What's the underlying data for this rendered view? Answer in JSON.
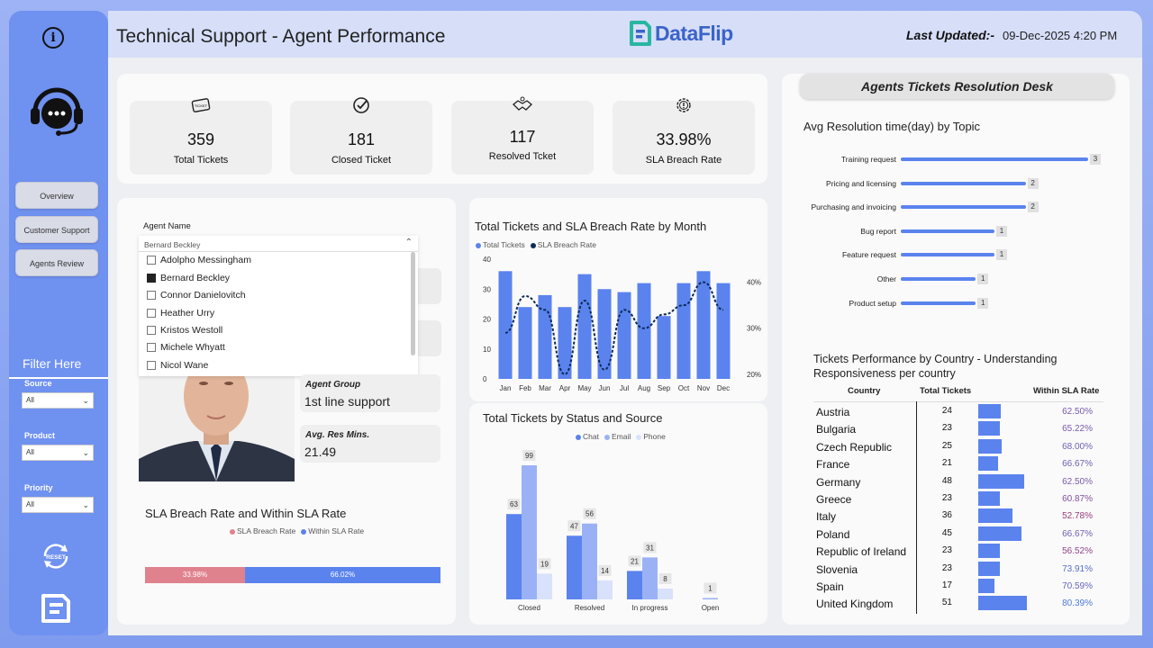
{
  "header": {
    "title": "Technical Support - Agent Performance",
    "brand": "DataFlip",
    "last_updated_label": "Last Updated:-",
    "last_updated_value": "09-Dec-2025 4:20 PM"
  },
  "sidebar": {
    "nav": [
      "Overview",
      "Customer Support",
      "Agents Review"
    ],
    "filter_title": "Filter Here",
    "filters": [
      {
        "label": "Source",
        "value": "All"
      },
      {
        "label": "Product",
        "value": "All"
      },
      {
        "label": "Priority",
        "value": "All"
      }
    ],
    "reset_label": "RESET"
  },
  "kpis": [
    {
      "value": "359",
      "label": "Total Tickets",
      "icon": "ticket-icon"
    },
    {
      "value": "181",
      "label": "Closed Ticket",
      "icon": "check-circle-icon"
    },
    {
      "value": "117",
      "label": "Resolved Tcket",
      "icon": "handshake-icon"
    },
    {
      "value": "33.98%",
      "label": "SLA Breach Rate",
      "icon": "alert-gear-icon"
    }
  ],
  "agent_filter": {
    "label": "Agent Name",
    "selected": "Bernard Beckley",
    "options": [
      {
        "name": "Adolpho Messingham",
        "checked": false
      },
      {
        "name": "Bernard Beckley",
        "checked": true
      },
      {
        "name": "Connor Danielovitch",
        "checked": false
      },
      {
        "name": "Heather Urry",
        "checked": false
      },
      {
        "name": "Kristos Westoll",
        "checked": false
      },
      {
        "name": "Michele Whyatt",
        "checked": false
      },
      {
        "name": "Nicol Wane",
        "checked": false
      }
    ]
  },
  "agent_info": {
    "group_label": "Agent Group",
    "group_value": "1st line support",
    "avg_label": "Avg. Res Mins.",
    "avg_value": "21.49"
  },
  "sla_rates": {
    "title": "SLA Breach Rate and Within SLA Rate",
    "legend": [
      "SLA Breach Rate",
      "Within SLA Rate"
    ],
    "breach": "33.98%",
    "within": "66.02%",
    "colors": [
      "#e0828e",
      "#5b83ee"
    ]
  },
  "monthly": {
    "title": "Total Tickets and SLA Breach Rate by Month",
    "legend": [
      "Total Tickets",
      "SLA Breach Rate"
    ]
  },
  "status": {
    "title": "Total Tickets by Status and Source",
    "legend": [
      "Chat",
      "Email",
      "Phone"
    ]
  },
  "desk": {
    "title": "Agents Tickets Resolution Desk",
    "topic_title": "Avg Resolution time(day) by Topic",
    "topics": [
      {
        "label": "Training request",
        "value": "3",
        "n": 3
      },
      {
        "label": "Pricing and licensing",
        "value": "2",
        "n": 2
      },
      {
        "label": "Purchasing and invoicing",
        "value": "2",
        "n": 2
      },
      {
        "label": "Bug report",
        "value": "1",
        "n": 1.5
      },
      {
        "label": "Feature request",
        "value": "1",
        "n": 1.5
      },
      {
        "label": "Other",
        "value": "1",
        "n": 1.2
      },
      {
        "label": "Product setup",
        "value": "1",
        "n": 1.2
      }
    ],
    "country_title": "Tickets Performance by Country - Understanding Responsiveness per country",
    "country_headers": [
      "Country",
      "Total Tickets",
      "Within SLA Rate"
    ],
    "countries": [
      {
        "country": "Austria",
        "total": "24",
        "rate": "62.50%",
        "n": 24,
        "color": "#7a5aa8"
      },
      {
        "country": "Bulgaria",
        "total": "23",
        "rate": "65.22%",
        "n": 23,
        "color": "#7a5aa8"
      },
      {
        "country": "Czech Republic",
        "total": "25",
        "rate": "68.00%",
        "n": 25,
        "color": "#6e63b4"
      },
      {
        "country": "France",
        "total": "21",
        "rate": "66.67%",
        "n": 21,
        "color": "#7060b0"
      },
      {
        "country": "Germany",
        "total": "48",
        "rate": "62.50%",
        "n": 48,
        "color": "#7a5aa8"
      },
      {
        "country": "Greece",
        "total": "23",
        "rate": "60.87%",
        "n": 23,
        "color": "#80509e"
      },
      {
        "country": "Italy",
        "total": "36",
        "rate": "52.78%",
        "n": 36,
        "color": "#9a3a7a"
      },
      {
        "country": "Poland",
        "total": "45",
        "rate": "66.67%",
        "n": 45,
        "color": "#7060b0"
      },
      {
        "country": "Republic of Ireland",
        "total": "23",
        "rate": "56.52%",
        "n": 23,
        "color": "#8e4488"
      },
      {
        "country": "Slovenia",
        "total": "23",
        "rate": "73.91%",
        "n": 23,
        "color": "#5b70c4"
      },
      {
        "country": "Spain",
        "total": "17",
        "rate": "70.59%",
        "n": 17,
        "color": "#6468bc"
      },
      {
        "country": "United Kingdom",
        "total": "51",
        "rate": "80.39%",
        "n": 51,
        "color": "#4f7ad6"
      }
    ]
  },
  "chart_data": [
    {
      "type": "bar",
      "title": "Total Tickets and SLA Breach Rate by Month",
      "categories": [
        "Jan",
        "Feb",
        "Mar",
        "Apr",
        "May",
        "Jun",
        "Jul",
        "Aug",
        "Sep",
        "Oct",
        "Nov",
        "Dec"
      ],
      "series": [
        {
          "name": "Total Tickets",
          "type": "bar",
          "values": [
            36,
            24,
            28,
            24,
            35,
            30,
            29,
            32,
            21,
            32,
            36,
            32
          ],
          "color": "#5b83ee"
        },
        {
          "name": "SLA Breach Rate",
          "type": "line",
          "axis": "right",
          "values": [
            29,
            37,
            34,
            20,
            36,
            21,
            34,
            30,
            33,
            35,
            40,
            34
          ],
          "color": "#0b2a59"
        }
      ],
      "ylim": [
        0,
        40
      ],
      "y_ticks": [
        0,
        10,
        20,
        30,
        40
      ],
      "y2_ticks": [
        "20%",
        "30%",
        "40%"
      ],
      "y2_values": [
        20,
        30,
        40
      ],
      "y2lim": [
        19,
        45
      ]
    },
    {
      "type": "bar",
      "title": "Total Tickets by Status and Source",
      "categories": [
        "Closed",
        "Resolved",
        "In progress",
        "Open"
      ],
      "series": [
        {
          "name": "Chat",
          "values": [
            63,
            47,
            21,
            null
          ],
          "color": "#5b83ee"
        },
        {
          "name": "Email",
          "values": [
            99,
            56,
            31,
            1
          ],
          "color": "#9ab2f5"
        },
        {
          "name": "Phone",
          "values": [
            19,
            14,
            8,
            null
          ],
          "color": "#d9e2fb"
        }
      ],
      "ylim": [
        0,
        105
      ]
    }
  ]
}
